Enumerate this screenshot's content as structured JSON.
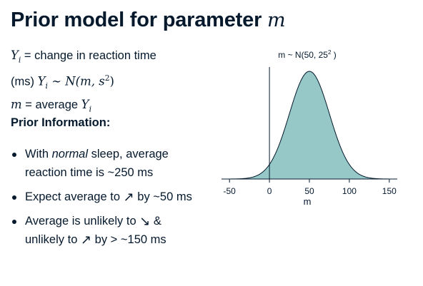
{
  "title": {
    "text": "Prior model for parameter",
    "variable": "m"
  },
  "definitions": {
    "line1_math": "Y",
    "line1_sub": "i",
    "line1_text": " = change in reaction time",
    "line2_text": "(ms) ",
    "line2_math_y": "Y",
    "line2_math_sub": "i",
    "line2_math_rest": " ∼ N(m, s",
    "line2_math_sup": "2",
    "line2_math_close": ")",
    "line3_math": "m",
    "line3_text": " = average ",
    "line3_math_y": "Y",
    "line3_math_sub": "i"
  },
  "prior_heading": "Prior Information:",
  "bullets": [
    {
      "part1": "With ",
      "italic": "normal",
      "part2": " sleep, average reaction time is ~250 ms"
    },
    {
      "part1": "Expect average to ",
      "arrow": "↗",
      "part2": " by ~50 ms"
    },
    {
      "part1": "Average is unlikely to ",
      "arrow": "↘",
      "part2": " & unlikely to ",
      "arrow2": "↗",
      "part3": " by > ~150 ms"
    }
  ],
  "chart_data": {
    "type": "area",
    "title": "m ~ N(50,  25",
    "title_sup": "2",
    "title_close": " )",
    "xlabel": "m",
    "ylabel": "",
    "distribution": {
      "family": "normal",
      "mean": 50,
      "sd": 25
    },
    "xlim": [
      -60,
      160
    ],
    "xticks": [
      -50,
      0,
      50,
      100,
      150
    ],
    "xtick_labels": [
      "-50",
      "0",
      "50",
      "100",
      "150"
    ],
    "vline_x": 0,
    "grid": false,
    "fill_color": "#96c8c8",
    "line_color": "#05192d"
  },
  "colors": {
    "text": "#05192d",
    "fill": "#96c8c8"
  }
}
